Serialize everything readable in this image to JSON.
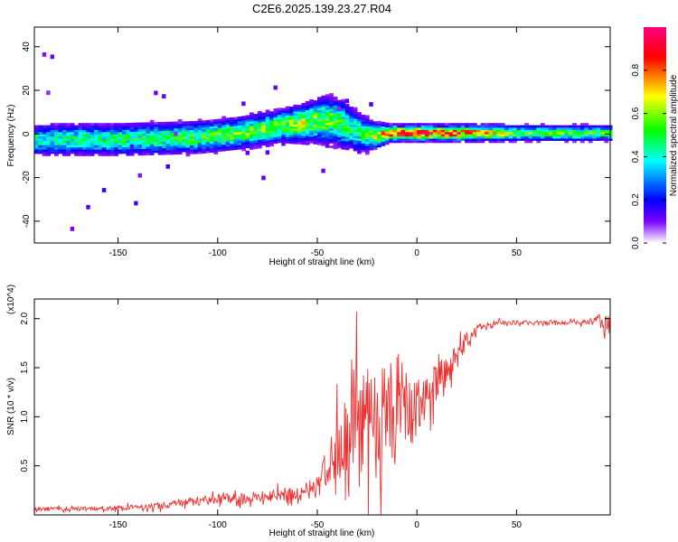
{
  "title": "C2E6.2025.139.23.27.R04",
  "chart_data": [
    {
      "type": "heatmap",
      "xlabel": "Height of straight line (km)",
      "ylabel": "Frequency (Hz)",
      "xlim": [
        -192,
        97
      ],
      "ylim": [
        -50,
        49
      ],
      "xticks": [
        -150,
        -100,
        -50,
        0,
        50
      ],
      "yticks": [
        -40,
        -20,
        0,
        20,
        40
      ],
      "colorbar": {
        "label": "Normalized spectral amplitude",
        "range": [
          0,
          1
        ],
        "ticks": [
          0.0,
          0.2,
          0.4,
          0.6,
          0.8
        ],
        "tick_labels": [
          "0.0",
          "0.2",
          "0.4",
          "0.6",
          "0.8"
        ],
        "colors": [
          "#ffffff",
          "#7b00ff",
          "#0000ff",
          "#00ffff",
          "#00ff00",
          "#ffff00",
          "#ff0000",
          "#ff0080"
        ]
      },
      "ridge": {
        "x": [
          -190,
          -170,
          -150,
          -130,
          -110,
          -90,
          -70,
          -55,
          -45,
          -38,
          -30,
          -25,
          -20,
          -15,
          0,
          20,
          50,
          95
        ],
        "freq_hz": [
          -3,
          -3,
          -3,
          -2.5,
          -2,
          0,
          3,
          5,
          6,
          4,
          0,
          -1,
          -1,
          0,
          0,
          0,
          0,
          0
        ],
        "amplitude": [
          0.45,
          0.5,
          0.5,
          0.55,
          0.55,
          0.6,
          0.65,
          0.65,
          0.6,
          0.55,
          0.5,
          0.6,
          0.7,
          0.95,
          0.95,
          0.9,
          0.6,
          0.55
        ],
        "spread_hz": [
          4,
          4,
          4,
          4,
          4,
          4,
          4,
          5,
          6,
          6,
          5,
          4,
          3,
          2,
          2,
          2,
          2,
          2
        ]
      }
    },
    {
      "type": "line",
      "xlabel": "Height of straight line (km)",
      "ylabel": "SNR (10 * v/v)",
      "y_multiplier": "(x10^4)",
      "xlim": [
        -192,
        97
      ],
      "ylim": [
        0,
        2.2
      ],
      "xticks": [
        -150,
        -100,
        -50,
        0,
        50
      ],
      "yticks": [
        0.5,
        1.0,
        1.5,
        2.0
      ],
      "ytick_labels": [
        "0.5",
        "1.0",
        "1.5",
        "2.0"
      ],
      "series": [
        {
          "color": "#f03030",
          "x": [
            -192,
            -170,
            -150,
            -130,
            -120,
            -100,
            -80,
            -60,
            -50,
            -45,
            -40,
            -35,
            -30,
            -25,
            -20,
            -15,
            -10,
            -5,
            0,
            5,
            10,
            15,
            20,
            25,
            30,
            40,
            50,
            60,
            70,
            80,
            88,
            92,
            95,
            97
          ],
          "y": [
            0.06,
            0.06,
            0.07,
            0.09,
            0.12,
            0.16,
            0.18,
            0.22,
            0.28,
            0.45,
            0.7,
            0.9,
            1.0,
            0.95,
            0.9,
            0.95,
            1.0,
            1.05,
            1.15,
            1.25,
            1.35,
            1.45,
            1.6,
            1.78,
            1.9,
            1.96,
            1.96,
            1.96,
            1.96,
            1.96,
            1.97,
            2.0,
            1.9,
            1.95
          ],
          "noise": [
            0.03,
            0.03,
            0.03,
            0.05,
            0.06,
            0.07,
            0.08,
            0.1,
            0.15,
            0.3,
            0.55,
            0.7,
            0.8,
            0.85,
            0.8,
            0.7,
            0.55,
            0.45,
            0.4,
            0.35,
            0.3,
            0.25,
            0.18,
            0.1,
            0.06,
            0.03,
            0.03,
            0.03,
            0.03,
            0.03,
            0.05,
            0.12,
            0.2,
            0.1
          ]
        }
      ]
    }
  ]
}
